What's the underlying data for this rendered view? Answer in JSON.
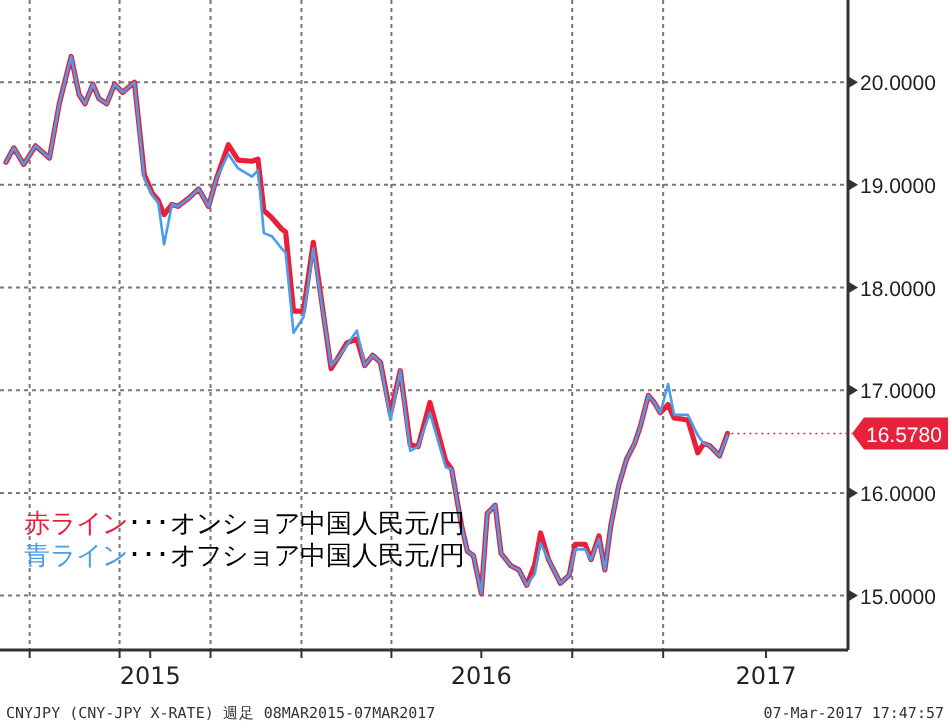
{
  "chart_data": {
    "type": "line",
    "x": [
      "2015-03-08",
      "2015-03-16",
      "2015-03-26",
      "2015-04-07",
      "2015-04-21",
      "2015-05-01",
      "2015-05-13",
      "2015-05-21",
      "2015-05-27",
      "2015-06-04",
      "2015-06-10",
      "2015-06-18",
      "2015-06-26",
      "2015-07-04",
      "2015-07-16",
      "2015-07-26",
      "2015-08-03",
      "2015-08-09",
      "2015-08-15",
      "2015-08-23",
      "2015-08-29",
      "2015-09-09",
      "2015-09-19",
      "2015-09-29",
      "2015-10-07",
      "2015-10-19",
      "2015-10-29",
      "2015-11-12",
      "2015-11-18",
      "2015-11-24",
      "2015-12-02",
      "2015-12-12",
      "2015-12-16",
      "2015-12-24",
      "2016-01-03",
      "2016-01-13",
      "2016-01-31",
      "2016-02-06",
      "2016-02-16",
      "2016-02-26",
      "2016-03-05",
      "2016-03-13",
      "2016-03-21",
      "2016-03-31",
      "2016-04-10",
      "2016-04-20",
      "2016-04-28",
      "2016-05-10",
      "2016-05-26",
      "2016-06-01",
      "2016-06-11",
      "2016-06-17",
      "2016-06-23",
      "2016-07-01",
      "2016-07-07",
      "2016-07-15",
      "2016-07-21",
      "2016-07-31",
      "2016-08-08",
      "2016-08-16",
      "2016-08-24",
      "2016-08-30",
      "2016-09-07",
      "2016-09-19",
      "2016-09-28",
      "2016-10-04",
      "2016-10-14",
      "2016-10-20",
      "2016-10-28",
      "2016-11-03",
      "2016-11-09",
      "2016-11-17",
      "2016-11-25",
      "2016-12-03",
      "2016-12-09",
      "2016-12-17",
      "2016-12-23",
      "2016-12-29",
      "2017-01-06",
      "2017-01-12",
      "2017-01-26",
      "2017-02-05",
      "2017-02-11",
      "2017-02-17",
      "2017-02-27",
      "2017-03-07"
    ],
    "series": [
      {
        "name": "赤ライン･･･オンショア中国人民元/円",
        "color": "#e8203a",
        "values": [
          19.22,
          19.36,
          19.2,
          19.38,
          19.26,
          19.79,
          20.25,
          19.88,
          19.79,
          19.98,
          19.84,
          19.79,
          19.98,
          19.9,
          20.0,
          19.1,
          18.92,
          18.85,
          18.71,
          18.81,
          18.79,
          18.87,
          18.96,
          18.79,
          19.06,
          19.39,
          19.24,
          19.23,
          19.25,
          18.75,
          18.68,
          18.57,
          18.54,
          17.77,
          17.77,
          18.44,
          17.21,
          17.3,
          17.46,
          17.5,
          17.24,
          17.34,
          17.27,
          16.77,
          17.19,
          16.47,
          16.45,
          16.88,
          16.31,
          16.23,
          15.68,
          15.43,
          15.39,
          15.02,
          15.8,
          15.88,
          15.41,
          15.29,
          15.25,
          15.1,
          15.3,
          15.61,
          15.35,
          15.12,
          15.2,
          15.5,
          15.5,
          15.35,
          15.58,
          15.25,
          15.68,
          16.07,
          16.33,
          16.48,
          16.65,
          16.95,
          16.88,
          16.78,
          16.86,
          16.73,
          16.71,
          16.39,
          16.48,
          16.46,
          16.36,
          16.578
        ]
      },
      {
        "name": "青ライン･･･オフショア中国人民元/円",
        "color": "#4a9ee8",
        "values": [
          19.22,
          19.36,
          19.2,
          19.38,
          19.26,
          19.79,
          20.25,
          19.88,
          19.79,
          19.98,
          19.84,
          19.79,
          19.98,
          19.9,
          20.0,
          19.06,
          18.9,
          18.83,
          18.42,
          18.81,
          18.79,
          18.87,
          18.96,
          18.79,
          19.06,
          19.3,
          19.16,
          19.08,
          19.14,
          18.53,
          18.5,
          18.38,
          18.34,
          17.56,
          17.71,
          18.38,
          17.24,
          17.3,
          17.44,
          17.58,
          17.24,
          17.34,
          17.27,
          16.71,
          17.19,
          16.41,
          16.45,
          16.78,
          16.25,
          16.23,
          15.68,
          15.43,
          15.39,
          15.02,
          15.8,
          15.88,
          15.41,
          15.29,
          15.25,
          15.1,
          15.21,
          15.51,
          15.35,
          15.12,
          15.2,
          15.45,
          15.45,
          15.35,
          15.55,
          15.25,
          15.68,
          16.07,
          16.33,
          16.48,
          16.65,
          16.95,
          16.88,
          16.78,
          17.06,
          16.76,
          16.76,
          16.56,
          16.48,
          16.46,
          16.36,
          16.56
        ]
      }
    ],
    "xlim": [
      "2015-03-02",
      "2017-07-07"
    ],
    "xticks": [
      {
        "value": "2015-04-01",
        "label": null
      },
      {
        "value": "2015-07-01",
        "label": null
      },
      {
        "value": "2015-08-01",
        "label": "2015"
      },
      {
        "value": "2015-10-01",
        "label": null
      },
      {
        "value": "2016-01-01",
        "label": null
      },
      {
        "value": "2016-04-01",
        "label": null
      },
      {
        "value": "2016-07-01",
        "label": "2016"
      },
      {
        "value": "2016-10-01",
        "label": null
      },
      {
        "value": "2017-01-01",
        "label": null
      },
      {
        "value": "2017-04-15",
        "label": "2017"
      }
    ],
    "ylim": [
      14.47,
      20.8
    ],
    "yticks": [
      {
        "value": 15,
        "label": "15.0000"
      },
      {
        "value": 16,
        "label": "16.0000"
      },
      {
        "value": 17,
        "label": "17.0000"
      },
      {
        "value": 18,
        "label": "18.0000"
      },
      {
        "value": 19,
        "label": "19.0000"
      },
      {
        "value": 20,
        "label": "20.0000"
      }
    ],
    "grid": true,
    "legend": "bottom left",
    "marker": "none",
    "line_style": "solid",
    "annotations": [
      {
        "text": "16.5780",
        "x": "2017-03-07",
        "y": 16.578
      },
      "CNYJPY (CNY-JPY X-RATE) 週足 08MAR2015-07MAR2017",
      "07-Mar-2017 17:47:57"
    ]
  }
}
